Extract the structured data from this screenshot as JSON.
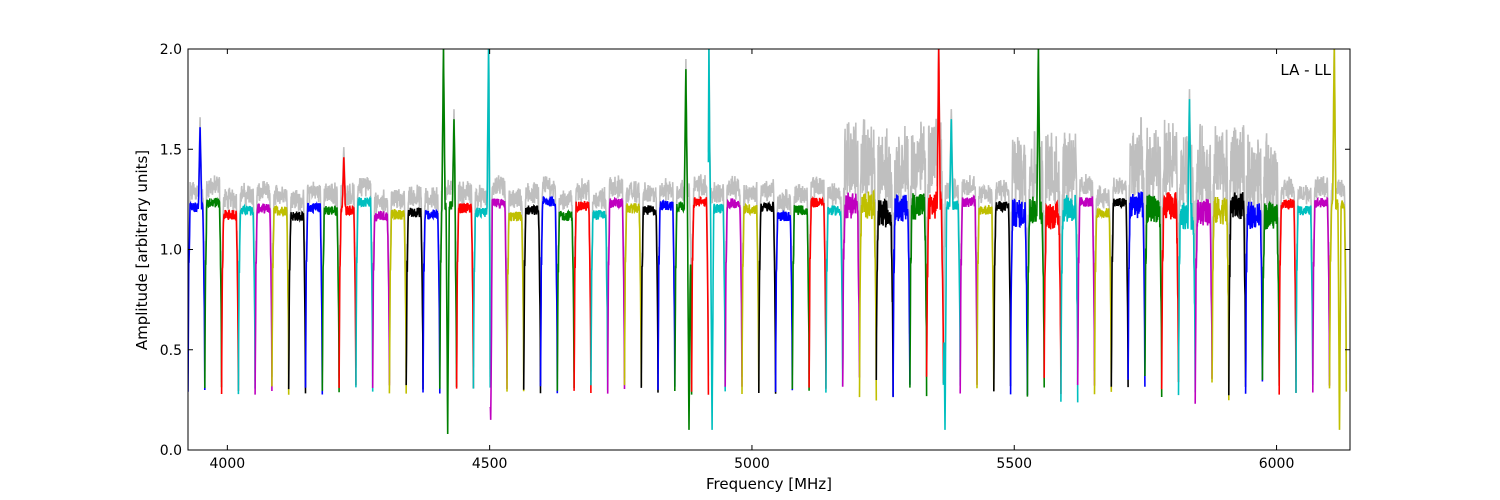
{
  "chart_data": {
    "type": "line",
    "title": "",
    "annotation": "LA - LL",
    "xlabel": "Frequency [MHz]",
    "ylabel": "Amplitude [arbitrary units]",
    "xlim": [
      3925,
      6140
    ],
    "ylim": [
      0,
      2.0
    ],
    "xticks": [
      4000,
      4500,
      5000,
      5500,
      6000
    ],
    "yticks": [
      0.0,
      0.5,
      1.0,
      1.5,
      2.0
    ],
    "xtick_labels": [
      "4000",
      "4500",
      "5000",
      "5500",
      "6000"
    ],
    "ytick_labels": [
      "0.0",
      "0.5",
      "1.0",
      "1.5",
      "2.0"
    ],
    "grid": false,
    "background_series": {
      "color": "#bfbfbf",
      "description_visible": false
    },
    "channel_width_mhz": 32,
    "series_colors": [
      "#0000ff",
      "#008000",
      "#ff0000",
      "#00bfbf",
      "#bf00bf",
      "#bfbf00",
      "#000000"
    ],
    "channel_start_mhz": 3925,
    "channel_count": 69,
    "typical_passband_level": 1.2,
    "typical_edge_minimum": 0.3,
    "spikes": [
      {
        "x": 3948,
        "y": 1.61,
        "color": "#0000ff"
      },
      {
        "x": 4222,
        "y": 1.46,
        "color": "#ff0000"
      },
      {
        "x": 4412,
        "y": 2.0,
        "color": "#008000"
      },
      {
        "x": 4420,
        "y": 0.08,
        "color": "#008000"
      },
      {
        "x": 4432,
        "y": 1.65,
        "color": "#008000"
      },
      {
        "x": 4498,
        "y": 2.0,
        "color": "#bf00bf"
      },
      {
        "x": 4502,
        "y": 0.15,
        "color": "#bf00bf"
      },
      {
        "x": 4874,
        "y": 1.9,
        "color": "#bf00bf"
      },
      {
        "x": 4880,
        "y": 0.1,
        "color": "#bf00bf"
      },
      {
        "x": 4918,
        "y": 2.0,
        "color": "#00bfbf"
      },
      {
        "x": 4924,
        "y": 0.1,
        "color": "#00bfbf"
      },
      {
        "x": 5356,
        "y": 2.0,
        "color": "#000000"
      },
      {
        "x": 5368,
        "y": 0.1,
        "color": "#000000"
      },
      {
        "x": 5380,
        "y": 1.65,
        "color": "#000000"
      },
      {
        "x": 5546,
        "y": 2.0,
        "color": "#bf00bf"
      },
      {
        "x": 5834,
        "y": 1.75,
        "color": "#000000"
      },
      {
        "x": 6110,
        "y": 2.0,
        "color": "#ff0000"
      },
      {
        "x": 6120,
        "y": 0.1,
        "color": "#ff0000"
      }
    ]
  }
}
